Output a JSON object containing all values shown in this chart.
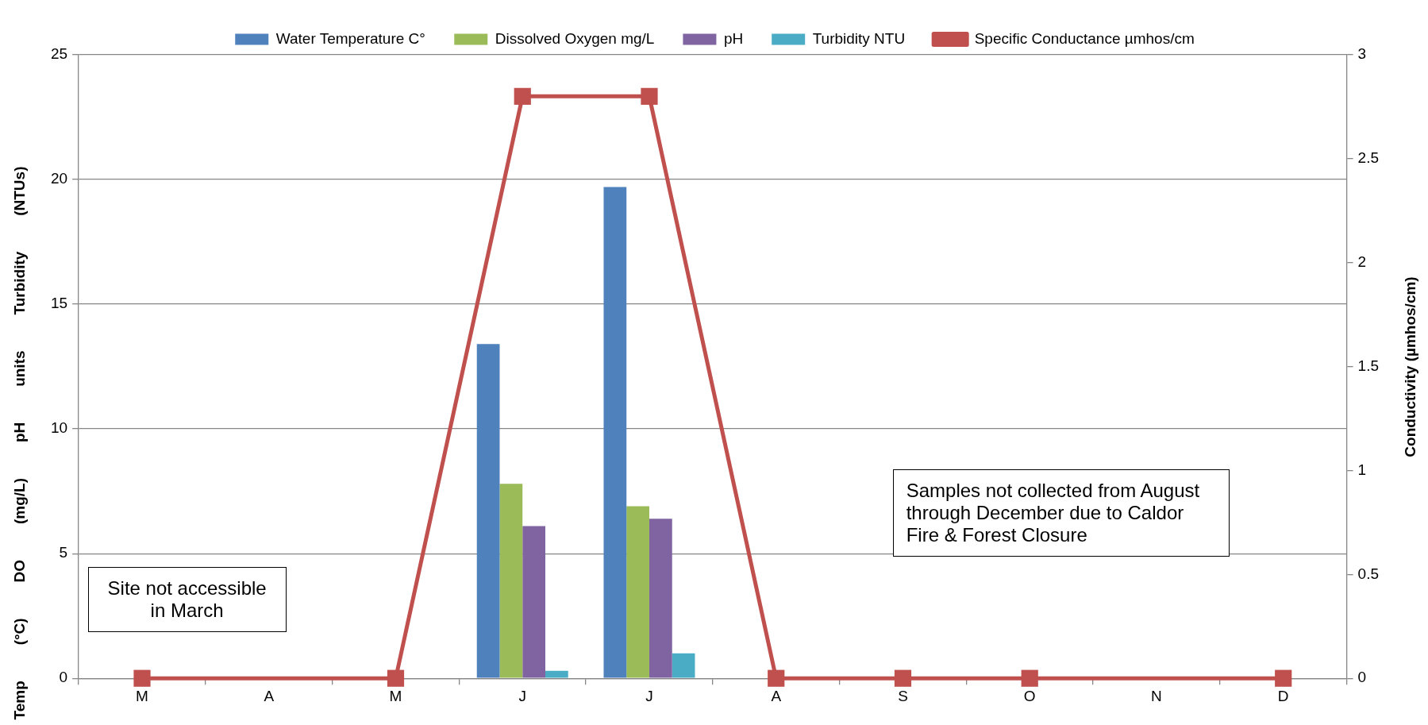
{
  "chart_data": {
    "type": "bar",
    "categories": [
      "M",
      "A",
      "M",
      "J",
      "J",
      "A",
      "S",
      "O",
      "N",
      "D"
    ],
    "series": [
      {
        "name": "Water Temperature C°",
        "color": "#4f81bd",
        "values": [
          null,
          null,
          null,
          13.4,
          19.7,
          null,
          null,
          null,
          null,
          null
        ]
      },
      {
        "name": "Dissolved Oxygen mg/L",
        "color": "#9bbb59",
        "values": [
          null,
          null,
          null,
          7.8,
          6.9,
          null,
          null,
          null,
          null,
          null
        ]
      },
      {
        "name": "pH",
        "color": "#8064a2",
        "values": [
          null,
          null,
          null,
          6.1,
          6.4,
          null,
          null,
          null,
          null,
          null
        ]
      },
      {
        "name": "Turbidity NTU",
        "color": "#4bacc6",
        "values": [
          null,
          null,
          null,
          0.3,
          1.0,
          null,
          null,
          null,
          null,
          null
        ]
      },
      {
        "name": "Specific Conductance µmhos/cm",
        "type": "line",
        "axis": "y2",
        "color": "#c0504d",
        "values": [
          0,
          null,
          0,
          2.8,
          2.8,
          0,
          0,
          0,
          null,
          0
        ]
      }
    ],
    "ylabel": "Temp (°C) DO (mg/L) pH units Turbidity (NTUs)",
    "y2label": "Conductivity (µmhos/cm)",
    "ylim": [
      0,
      25
    ],
    "yticks": [
      0,
      5,
      10,
      15,
      20,
      25
    ],
    "y2lim": [
      0,
      3
    ],
    "y2ticks": [
      0,
      0.5,
      1,
      1.5,
      2,
      2.5,
      3
    ],
    "annotations": [
      "Site not accessible in March",
      "Samples not collected from August through December due to Caldor Fire & Forest Closure"
    ],
    "grid": "y",
    "legend": "top",
    "marker": "square",
    "line_style": "solid"
  }
}
